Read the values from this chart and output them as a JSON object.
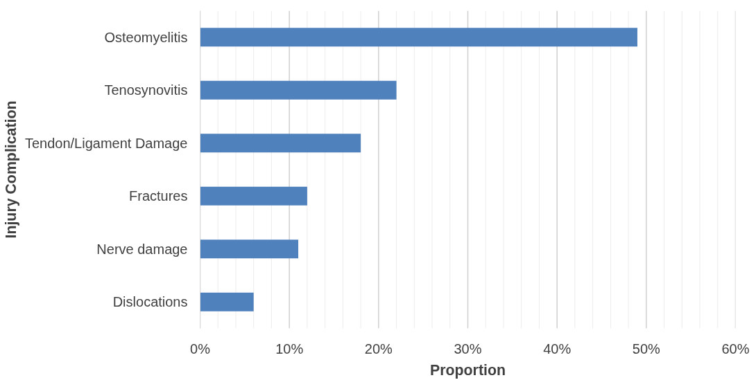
{
  "chart_data": {
    "type": "bar",
    "orientation": "horizontal",
    "xlabel": "Proportion",
    "ylabel": "Injury Complication",
    "categories": [
      "Osteomyelitis",
      "Tenosynovitis",
      "Tendon/Ligament Damage",
      "Fractures",
      "Nerve damage",
      "Dislocations"
    ],
    "values": [
      49,
      22,
      18,
      12,
      11,
      6
    ],
    "color": "#4f81bd",
    "xlim": [
      0,
      60
    ],
    "xticks": [
      {
        "value": 0,
        "label": "0%"
      },
      {
        "value": 2,
        "label": null
      },
      {
        "value": 4,
        "label": null
      },
      {
        "value": 6,
        "label": null
      },
      {
        "value": 8,
        "label": null
      },
      {
        "value": 10,
        "label": "10%"
      },
      {
        "value": 12,
        "label": null
      },
      {
        "value": 14,
        "label": null
      },
      {
        "value": 16,
        "label": null
      },
      {
        "value": 18,
        "label": null
      },
      {
        "value": 20,
        "label": "20%"
      },
      {
        "value": 22,
        "label": null
      },
      {
        "value": 24,
        "label": null
      },
      {
        "value": 26,
        "label": null
      },
      {
        "value": 28,
        "label": null
      },
      {
        "value": 30,
        "label": "30%"
      },
      {
        "value": 32,
        "label": null
      },
      {
        "value": 34,
        "label": null
      },
      {
        "value": 36,
        "label": null
      },
      {
        "value": 38,
        "label": null
      },
      {
        "value": 40,
        "label": "40%"
      },
      {
        "value": 42,
        "label": null
      },
      {
        "value": 44,
        "label": null
      },
      {
        "value": 46,
        "label": null
      },
      {
        "value": 48,
        "label": null
      },
      {
        "value": 50,
        "label": "50%"
      },
      {
        "value": 52,
        "label": null
      },
      {
        "value": 54,
        "label": null
      },
      {
        "value": 56,
        "label": null
      },
      {
        "value": 58,
        "label": null
      },
      {
        "value": 60,
        "label": "60%"
      }
    ],
    "grid": "x"
  }
}
